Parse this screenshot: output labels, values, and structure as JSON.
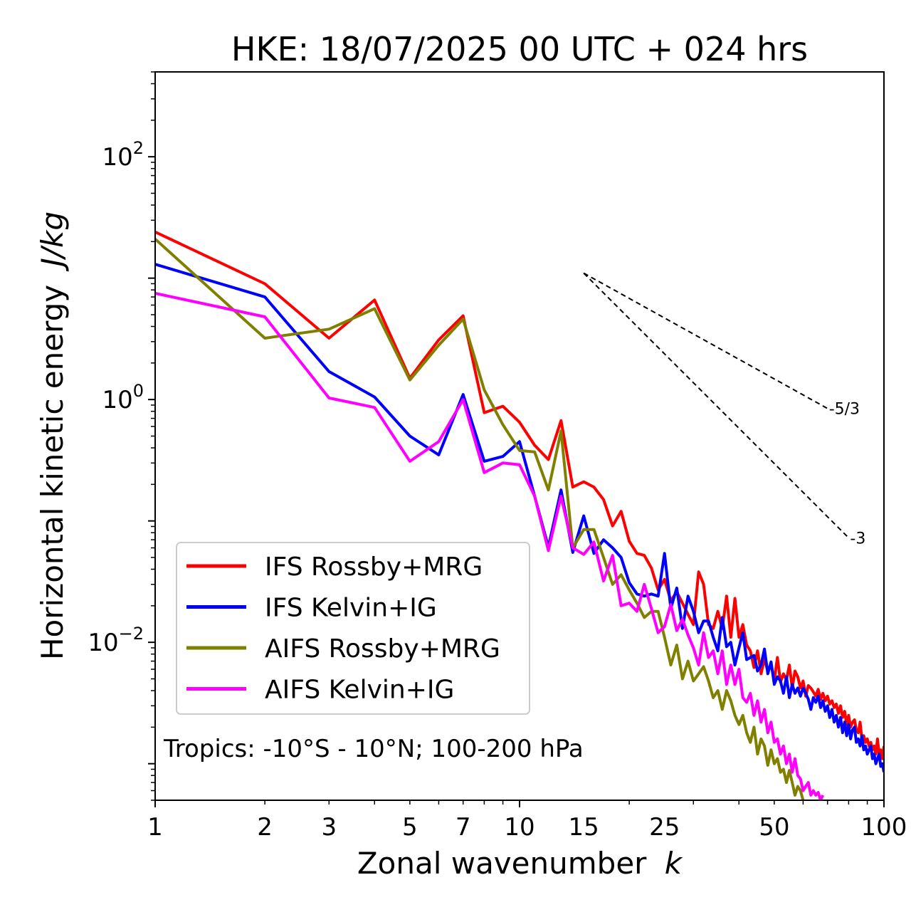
{
  "chart_data": {
    "type": "line",
    "title": "HKE: 18/07/2025 00 UTC + 024 hrs",
    "xlabel": "Zonal wavenumber",
    "xlabel_italic": "k",
    "ylabel": "Horizontal kinetic energy",
    "ylabel_italic": "J/kg",
    "xscale": "log",
    "yscale": "log",
    "xlim": [
      1,
      100
    ],
    "ylim": [
      0.0005,
      500
    ],
    "x_ticks": [
      1,
      2,
      3,
      5,
      7,
      10,
      15,
      25,
      50,
      100
    ],
    "x_tick_labels": [
      "1",
      "2",
      "3",
      "5",
      "7",
      "10",
      "15",
      "25",
      "50",
      "100"
    ],
    "y_ticks": [
      100,
      1,
      0.01
    ],
    "y_tick_labels": [
      {
        "base": "10",
        "exp": "2"
      },
      {
        "base": "10",
        "exp": "0"
      },
      {
        "base": "10",
        "exp": "−2"
      }
    ],
    "grid": false,
    "legend_position": "lower-left",
    "annotation": "Tropics: -10°S - 10°N; 100-200 hPa",
    "reference_slopes": [
      {
        "label": "-5/3",
        "slope": -1.6667,
        "x_start": 15,
        "x_end": 70,
        "y_start": 11
      },
      {
        "label": "-3",
        "slope": -3,
        "x_start": 15,
        "x_end": 80,
        "y_start": 11
      }
    ],
    "series": [
      {
        "name": "IFS Rossby+MRG",
        "color": "#ff0000",
        "x": [
          1,
          2,
          3,
          4,
          5,
          6,
          7,
          8,
          9,
          10,
          11,
          12,
          13,
          14,
          15,
          16,
          17,
          18,
          19,
          20,
          21,
          22,
          23,
          24,
          25,
          26,
          27,
          28,
          29,
          30,
          31,
          32,
          33,
          34,
          35,
          36,
          37,
          38,
          39,
          40,
          41,
          42,
          43,
          44,
          45,
          46,
          47,
          48,
          49,
          50,
          51,
          52,
          53,
          54,
          55,
          56,
          57,
          58,
          59,
          60,
          61,
          62,
          63,
          64,
          65,
          66,
          67,
          68,
          69,
          70,
          71,
          72,
          73,
          74,
          75,
          76,
          77,
          78,
          79,
          80,
          81,
          82,
          83,
          84,
          85,
          86,
          87,
          88,
          89,
          90,
          91,
          92,
          93,
          94,
          95,
          96,
          97,
          98,
          99,
          100
        ],
        "y": [
          24,
          9,
          3.2,
          6.6,
          1.5,
          3.1,
          4.9,
          0.78,
          0.88,
          0.65,
          0.42,
          0.32,
          0.67,
          0.19,
          0.21,
          0.19,
          0.15,
          0.091,
          0.12,
          0.068,
          0.054,
          0.052,
          0.041,
          0.027,
          0.033,
          0.022,
          0.026,
          0.021,
          0.017,
          0.014,
          0.038,
          0.03,
          0.014,
          0.013,
          0.018,
          0.013,
          0.024,
          0.011,
          0.023,
          0.011,
          0.014,
          0.0095,
          0.0085,
          0.0062,
          0.0085,
          0.0055,
          0.0073,
          0.0058,
          0.0065,
          0.0049,
          0.0075,
          0.0047,
          0.0055,
          0.0049,
          0.0065,
          0.0042,
          0.0058,
          0.0052,
          0.0042,
          0.0048,
          0.0036,
          0.0044,
          0.0042,
          0.0039,
          0.0036,
          0.0041,
          0.0034,
          0.0038,
          0.0033,
          0.0036,
          0.0031,
          0.0033,
          0.0029,
          0.0031,
          0.0026,
          0.003,
          0.0024,
          0.0027,
          0.0021,
          0.0025,
          0.002,
          0.0022,
          0.0023,
          0.0019,
          0.0018,
          0.0022,
          0.0016,
          0.0017,
          0.0015,
          0.0016,
          0.0014,
          0.0015,
          0.0013,
          0.0014,
          0.0012,
          0.0016,
          0.0012,
          0.0013,
          0.0011,
          0.0014
        ]
      },
      {
        "name": "IFS Kelvin+IG",
        "color": "#0000ff",
        "x": [
          1,
          2,
          3,
          4,
          5,
          6,
          7,
          8,
          9,
          10,
          11,
          12,
          13,
          14,
          15,
          16,
          17,
          18,
          19,
          20,
          21,
          22,
          23,
          24,
          25,
          26,
          27,
          28,
          29,
          30,
          31,
          32,
          33,
          34,
          35,
          36,
          37,
          38,
          39,
          40,
          41,
          42,
          43,
          44,
          45,
          46,
          47,
          48,
          49,
          50,
          51,
          52,
          53,
          54,
          55,
          56,
          57,
          58,
          59,
          60,
          61,
          62,
          63,
          64,
          65,
          66,
          67,
          68,
          69,
          70,
          71,
          72,
          73,
          74,
          75,
          76,
          77,
          78,
          79,
          80,
          81,
          82,
          83,
          84,
          85,
          86,
          87,
          88,
          89,
          90,
          91,
          92,
          93,
          94,
          95,
          96,
          97,
          98,
          99,
          100
        ],
        "y": [
          13,
          7,
          1.7,
          1.05,
          0.5,
          0.35,
          1.1,
          0.31,
          0.34,
          0.45,
          0.16,
          0.061,
          0.18,
          0.055,
          0.11,
          0.054,
          0.07,
          0.06,
          0.05,
          0.031,
          0.025,
          0.024,
          0.025,
          0.024,
          0.054,
          0.019,
          0.028,
          0.013,
          0.024,
          0.018,
          0.012,
          0.015,
          0.015,
          0.011,
          0.0085,
          0.016,
          0.0092,
          0.01,
          0.0065,
          0.009,
          0.012,
          0.0072,
          0.0075,
          0.0078,
          0.0058,
          0.0065,
          0.0088,
          0.0055,
          0.0069,
          0.0045,
          0.0052,
          0.0048,
          0.0038,
          0.0052,
          0.0035,
          0.0045,
          0.0038,
          0.0042,
          0.0036,
          0.0042,
          0.0038,
          0.0034,
          0.0028,
          0.0035,
          0.0032,
          0.0036,
          0.0029,
          0.0033,
          0.0027,
          0.003,
          0.0024,
          0.0028,
          0.0022,
          0.0025,
          0.002,
          0.0024,
          0.0018,
          0.0022,
          0.0017,
          0.0021,
          0.0016,
          0.0019,
          0.002,
          0.0015,
          0.0016,
          0.0014,
          0.0017,
          0.0013,
          0.0014,
          0.0012,
          0.0013,
          0.0014,
          0.0011,
          0.0012,
          0.001,
          0.0011,
          0.0012,
          0.00095,
          0.001,
          0.00085
        ]
      },
      {
        "name": "AIFS Rossby+MRG",
        "color": "#808000",
        "x": [
          1,
          2,
          3,
          4,
          5,
          6,
          7,
          8,
          9,
          10,
          11,
          12,
          13,
          14,
          15,
          16,
          17,
          18,
          19,
          20,
          21,
          22,
          23,
          24,
          25,
          26,
          27,
          28,
          29,
          30,
          31,
          32,
          33,
          34,
          35,
          36,
          37,
          38,
          39,
          40,
          41,
          42,
          43,
          44,
          45,
          46,
          47,
          48,
          49,
          50,
          51,
          52,
          53,
          54,
          55,
          56,
          57,
          58,
          59,
          60,
          61,
          62,
          63,
          64,
          65,
          66,
          67,
          68
        ],
        "y": [
          21,
          3.2,
          3.8,
          5.6,
          1.45,
          2.8,
          4.6,
          1.2,
          0.62,
          0.38,
          0.37,
          0.18,
          0.55,
          0.06,
          0.085,
          0.085,
          0.05,
          0.03,
          0.036,
          0.027,
          0.021,
          0.016,
          0.018,
          0.018,
          0.011,
          0.0065,
          0.0095,
          0.005,
          0.007,
          0.0048,
          0.0055,
          0.0063,
          0.0048,
          0.0035,
          0.004,
          0.0028,
          0.004,
          0.0033,
          0.0025,
          0.0021,
          0.0025,
          0.0018,
          0.0015,
          0.002,
          0.0012,
          0.0016,
          0.0014,
          0.00097,
          0.0013,
          0.001,
          0.0011,
          0.00085,
          0.0009,
          0.0007,
          0.00088,
          0.0007,
          0.00055,
          0.00065,
          0.0006,
          0.0005,
          0.00048,
          0.00045,
          0.00042,
          0.0004,
          0.00038,
          0.00035,
          0.00033,
          0.0003
        ]
      },
      {
        "name": "AIFS Kelvin+IG",
        "color": "#ff00ff",
        "x": [
          1,
          2,
          3,
          4,
          5,
          6,
          7,
          8,
          9,
          10,
          11,
          12,
          13,
          14,
          15,
          16,
          17,
          18,
          19,
          20,
          21,
          22,
          23,
          24,
          25,
          26,
          27,
          28,
          29,
          30,
          31,
          32,
          33,
          34,
          35,
          36,
          37,
          38,
          39,
          40,
          41,
          42,
          43,
          44,
          45,
          46,
          47,
          48,
          49,
          50,
          51,
          52,
          53,
          54,
          55,
          56,
          57,
          58,
          59,
          60,
          61,
          62,
          63,
          64,
          65,
          66,
          67,
          68
        ],
        "y": [
          7.5,
          4.8,
          1.03,
          0.86,
          0.31,
          0.45,
          1,
          0.25,
          0.3,
          0.29,
          0.16,
          0.057,
          0.16,
          0.06,
          0.053,
          0.067,
          0.032,
          0.052,
          0.02,
          0.021,
          0.018,
          0.03,
          0.019,
          0.012,
          0.0135,
          0.0205,
          0.0125,
          0.0155,
          0.0115,
          0.009,
          0.0065,
          0.012,
          0.0075,
          0.0085,
          0.0055,
          0.0085,
          0.0045,
          0.0065,
          0.0045,
          0.006,
          0.0035,
          0.0032,
          0.0038,
          0.0025,
          0.0033,
          0.0022,
          0.0028,
          0.0018,
          0.0022,
          0.0015,
          0.0016,
          0.0012,
          0.0014,
          0.001,
          0.0012,
          0.00085,
          0.0011,
          0.0008,
          0.00075,
          0.0006,
          0.00065,
          0.0007,
          0.00055,
          0.0006,
          0.00055,
          0.00058,
          0.0005,
          0.00055
        ]
      }
    ]
  }
}
